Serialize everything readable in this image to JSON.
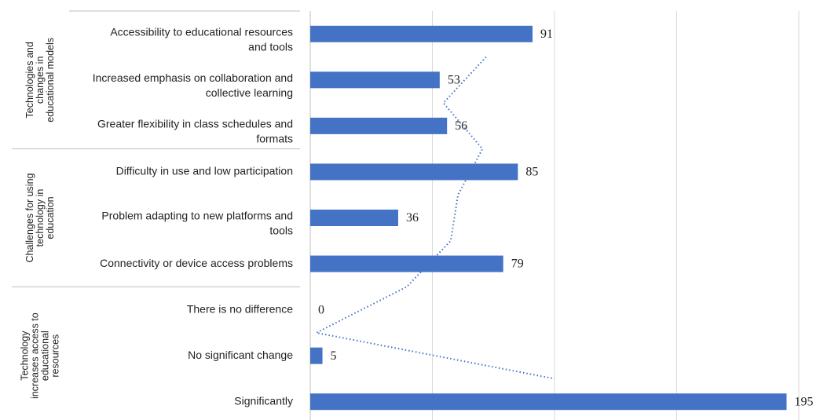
{
  "chart_data": {
    "type": "bar",
    "orientation": "horizontal",
    "groups": [
      {
        "label": [
          "Technologies and",
          "changes in",
          "educational models"
        ],
        "size": 3
      },
      {
        "label": [
          "Challenges for using",
          "technology in",
          "education"
        ],
        "size": 3
      },
      {
        "label": [
          "Technology",
          "increases access to",
          "educational",
          "resources"
        ],
        "size": 3
      }
    ],
    "categories": [
      [
        "Accessibility to educational resources",
        "and tools"
      ],
      [
        "Increased emphasis on collaboration and",
        "collective learning"
      ],
      [
        "Greater flexibility in class schedules and",
        "formats"
      ],
      [
        "Difficulty in use and low participation"
      ],
      [
        "Problem adapting to new platforms and",
        "tools"
      ],
      [
        "Connectivity or device access problems"
      ],
      [
        "There is no difference"
      ],
      [
        "No significant change"
      ],
      [
        "Significantly"
      ]
    ],
    "values": [
      91,
      53,
      56,
      85,
      36,
      79,
      0,
      5,
      195
    ],
    "color": "#4472c4",
    "xlim": [
      0,
      200
    ],
    "xticks": [
      0,
      50,
      100,
      150,
      200
    ],
    "grid": true,
    "trendline": {
      "kind": "moving_average",
      "period": 2,
      "color": "#4472c4"
    }
  }
}
